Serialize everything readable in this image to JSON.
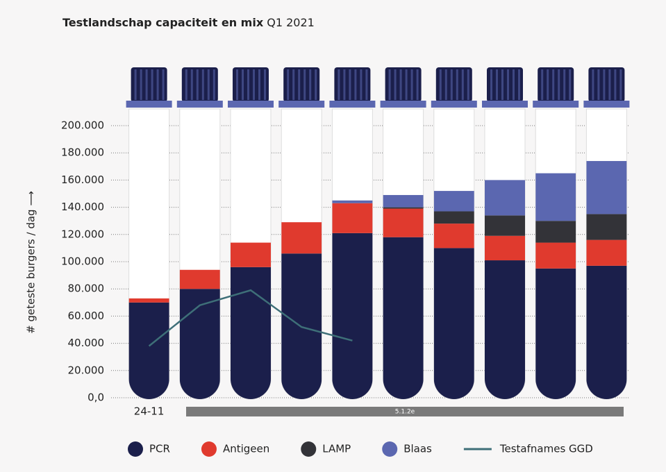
{
  "chart_data": {
    "type": "bar",
    "stacked": true,
    "title": "Testlandschap capaciteit en mix",
    "subtitle": "Q1 2021",
    "y_label": "# geteste burgers / dag ⟶",
    "annotation": "5.1.2e",
    "categories": [
      "24-11",
      null,
      null,
      null,
      null,
      null,
      null,
      null,
      null,
      null
    ],
    "series": [
      {
        "name": "PCR",
        "color": "#1b1f4b",
        "values": [
          70000,
          80000,
          96000,
          106000,
          121000,
          118000,
          110000,
          101000,
          95000,
          97000
        ]
      },
      {
        "name": "Antigeen",
        "color": "#e03a2e",
        "values": [
          3000,
          14000,
          18000,
          23000,
          22000,
          21000,
          18000,
          18000,
          19000,
          19000
        ]
      },
      {
        "name": "LAMP",
        "color": "#333338",
        "values": [
          0,
          0,
          0,
          0,
          0,
          1000,
          9000,
          15000,
          16000,
          19000
        ]
      },
      {
        "name": "Blaas",
        "color": "#5b67b0",
        "values": [
          0,
          0,
          0,
          0,
          2000,
          9000,
          15000,
          26000,
          35000,
          39000
        ]
      },
      {
        "name": "Testafnames GGD",
        "type": "line",
        "color": "#3e6f78",
        "values": [
          38000,
          68000,
          79000,
          52000,
          42000,
          null,
          null,
          null,
          null,
          null
        ]
      }
    ],
    "ylim": [
      0,
      200000
    ],
    "yticks": [
      {
        "value": 0,
        "label": "0,0"
      },
      {
        "value": 20000,
        "label": "20.000"
      },
      {
        "value": 40000,
        "label": "40.000"
      },
      {
        "value": 60000,
        "label": "60.000"
      },
      {
        "value": 80000,
        "label": "80.000"
      },
      {
        "value": 100000,
        "label": "100.000"
      },
      {
        "value": 120000,
        "label": "120.000"
      },
      {
        "value": 140000,
        "label": "140.000"
      },
      {
        "value": 160000,
        "label": "160.000"
      },
      {
        "value": 180000,
        "label": "180.000"
      },
      {
        "value": 200000,
        "label": "200.000"
      }
    ],
    "grid": true
  }
}
